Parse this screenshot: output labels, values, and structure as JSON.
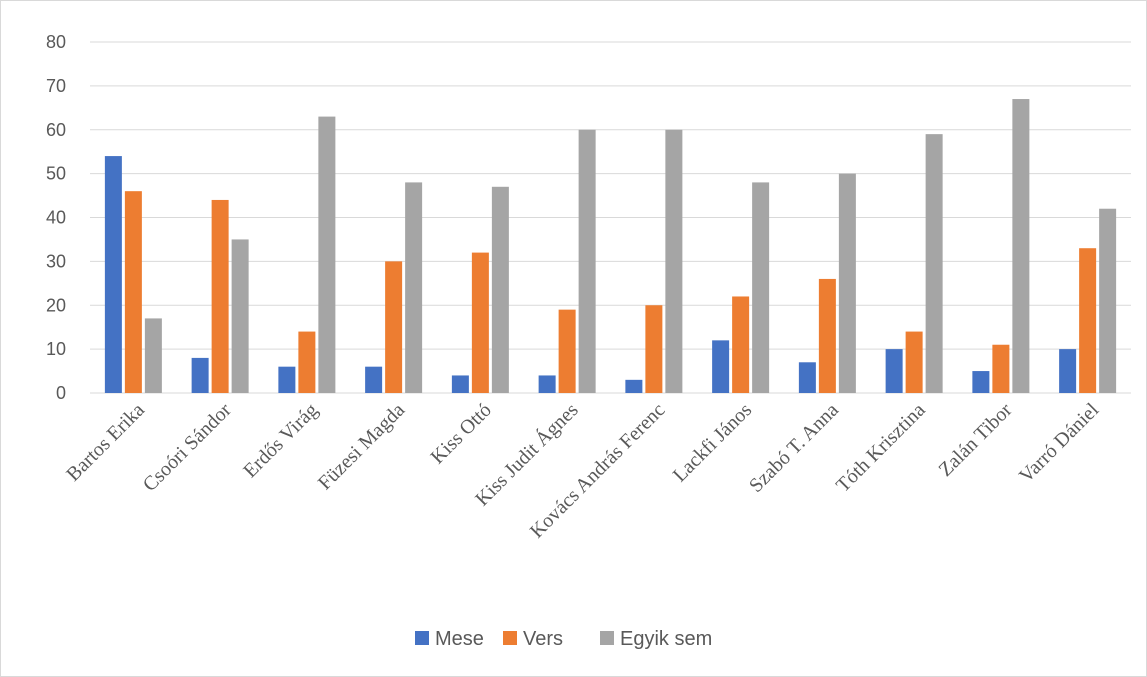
{
  "chart_data": {
    "type": "bar",
    "title": "",
    "xlabel": "",
    "ylabel": "",
    "ylim": [
      0,
      80
    ],
    "yticks": [
      0,
      10,
      20,
      30,
      40,
      50,
      60,
      70,
      80
    ],
    "grid": true,
    "legend_position": "bottom",
    "categories": [
      "Bartos Erika",
      "Csoóri Sándor",
      "Erdős Virág",
      "Füzesi Magda",
      "Kiss Ottó",
      "Kiss Judit Ágnes",
      "Kovács András Ferenc",
      "Lackfi János",
      "Szabó T. Anna",
      "Tóth Krisztina",
      "Zalán Tibor",
      "Varró Dániel"
    ],
    "series": [
      {
        "name": "Mese",
        "color": "#4472c4",
        "values": [
          54,
          8,
          6,
          6,
          4,
          4,
          3,
          12,
          7,
          10,
          5,
          10
        ]
      },
      {
        "name": "Vers",
        "color": "#ed7d31",
        "values": [
          46,
          44,
          14,
          30,
          32,
          19,
          20,
          22,
          26,
          14,
          11,
          33
        ]
      },
      {
        "name": "Egyik sem",
        "color": "#a5a5a5",
        "values": [
          17,
          35,
          63,
          48,
          47,
          60,
          60,
          48,
          50,
          59,
          67,
          42
        ]
      }
    ]
  }
}
